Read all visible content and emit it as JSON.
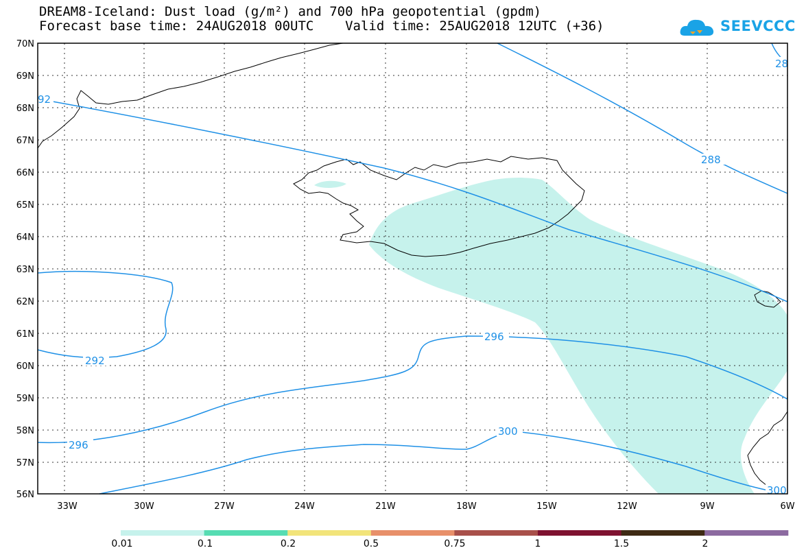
{
  "header": {
    "title_line1": "DREAM8-Iceland: Dust load (g/m²) and 700 hPa geopotential (gpdm)",
    "title_line2": "Forecast base time: 24AUG2018 00UTC    Valid time: 25AUG2018 12UTC (+36)"
  },
  "logo": {
    "text": "SEEVCCC",
    "color": "#1aa3e6"
  },
  "map": {
    "lat_labels": [
      "70N",
      "69N",
      "68N",
      "67N",
      "66N",
      "65N",
      "64N",
      "63N",
      "62N",
      "61N",
      "60N",
      "59N",
      "58N",
      "57N",
      "56N"
    ],
    "lon_labels": [
      "33W",
      "30W",
      "27W",
      "24W",
      "21W",
      "18W",
      "15W",
      "12W",
      "9W",
      "6W"
    ],
    "contour_color": "#1e90e6",
    "dust_color": "#c6f2ec",
    "contour_labels": {
      "c292_nw": "92",
      "c288_ne": "28",
      "c288": "288",
      "c292_sw": "292",
      "c296_w": "296",
      "c296_mid": "296",
      "c300_mid": "300",
      "c300_se": "300"
    }
  },
  "colorbar": {
    "colors": [
      "#c6f2ec",
      "#56dcb2",
      "#f2e47a",
      "#e8906a",
      "#a8504a",
      "#7e1230",
      "#3e2a14",
      "#8c6aa0"
    ],
    "labels": [
      "0.01",
      "0.1",
      "0.2",
      "0.5",
      "0.75",
      "1",
      "1.5",
      "2"
    ]
  }
}
